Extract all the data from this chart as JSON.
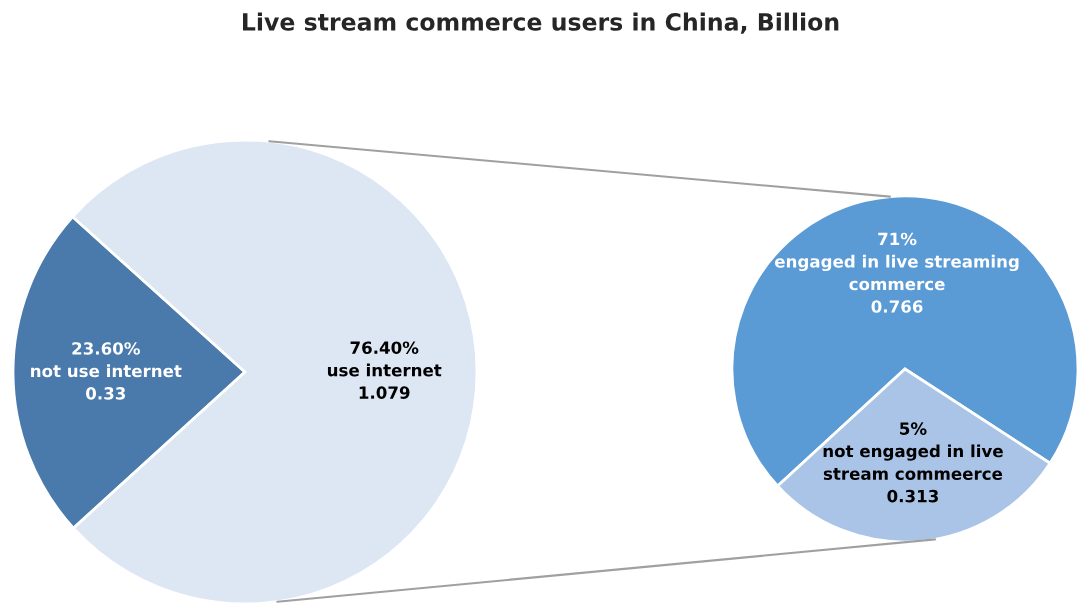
{
  "chart_data": [
    {
      "type": "pie",
      "title": "Live stream commerce users in China, Billion",
      "categories": [
        null,
        null
      ],
      "values": [
        0.33,
        1.079
      ],
      "value_labels": [
        "23.60%\nnot use internet\n0.33",
        "76.40%\nuse internet\n1.079"
      ],
      "colors": [
        "#4a7aab",
        "#dde6f3"
      ]
    },
    {
      "type": "pie",
      "categories": [
        null,
        null
      ],
      "values": [
        0.766,
        0.313
      ],
      "value_labels": [
        "71%\nengaged in live streaming\ncommerce\n0.766",
        "5%\nnot engaged in live\nstream commeerce\n0.313"
      ],
      "colors": [
        "#5b9bd5",
        "#a9c4e6"
      ]
    }
  ]
}
